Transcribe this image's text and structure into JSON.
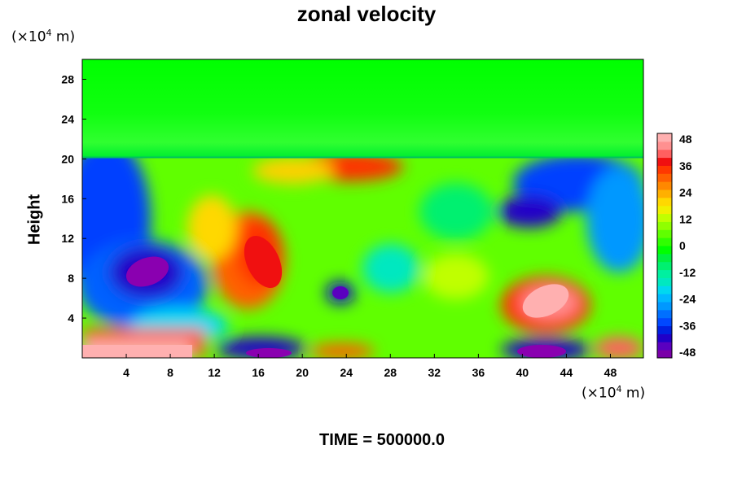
{
  "chart_data": {
    "type": "heatmap",
    "title": "zonal velocity",
    "ylabel": "Height",
    "y_unit_prefix": "(×10",
    "y_unit_exp": "4",
    "y_unit_suffix": " m)",
    "x_unit_prefix": "(×10",
    "x_unit_exp": "4",
    "x_unit_suffix": " m)",
    "footer": "TIME = 500000.0",
    "xlim": [
      0,
      51
    ],
    "ylim": [
      0,
      30
    ],
    "x_ticks": [
      "4",
      "8",
      "12",
      "16",
      "20",
      "24",
      "28",
      "32",
      "36",
      "40",
      "44",
      "48"
    ],
    "y_ticks": [
      "4",
      "8",
      "12",
      "16",
      "20",
      "24",
      "28"
    ],
    "colorbar": {
      "range": [
        -48,
        48
      ],
      "labels": [
        "48",
        "36",
        "24",
        "12",
        "0",
        "-12",
        "-24",
        "-36",
        "-48"
      ],
      "colors": [
        "#7a00a8",
        "#5a00c0",
        "#2000c8",
        "#0020e0",
        "#0048ff",
        "#0070ff",
        "#0098ff",
        "#00b8ff",
        "#00d8f0",
        "#00e8c0",
        "#00f0a0",
        "#00f070",
        "#00f040",
        "#00ff00",
        "#30ff00",
        "#60ff00",
        "#90ff00",
        "#c0ff00",
        "#f0f000",
        "#ffd800",
        "#ffb000",
        "#ff8800",
        "#ff6000",
        "#ff3800",
        "#f01010",
        "#ff6060",
        "#ff9090",
        "#ffb0b0"
      ]
    },
    "features": [
      {
        "x": 6,
        "y": 8.5,
        "value": -48
      },
      {
        "x": 16,
        "y": 10,
        "value": 34
      },
      {
        "x": 24,
        "y": 6.5,
        "value": -40
      },
      {
        "x": 43,
        "y": 5.5,
        "value": 48
      },
      {
        "x": 17,
        "y": 0.5,
        "value": -48
      },
      {
        "x": 42,
        "y": 0.5,
        "value": -48
      },
      {
        "x": 5,
        "y": 0.6,
        "value": 48
      },
      {
        "x": 25,
        "y": 19,
        "value": 36
      },
      {
        "x": 3,
        "y": 16,
        "value": -36
      },
      {
        "x": 46,
        "y": 17,
        "value": -40
      },
      {
        "x": 0.5,
        "y": 25,
        "value": 0
      }
    ]
  }
}
